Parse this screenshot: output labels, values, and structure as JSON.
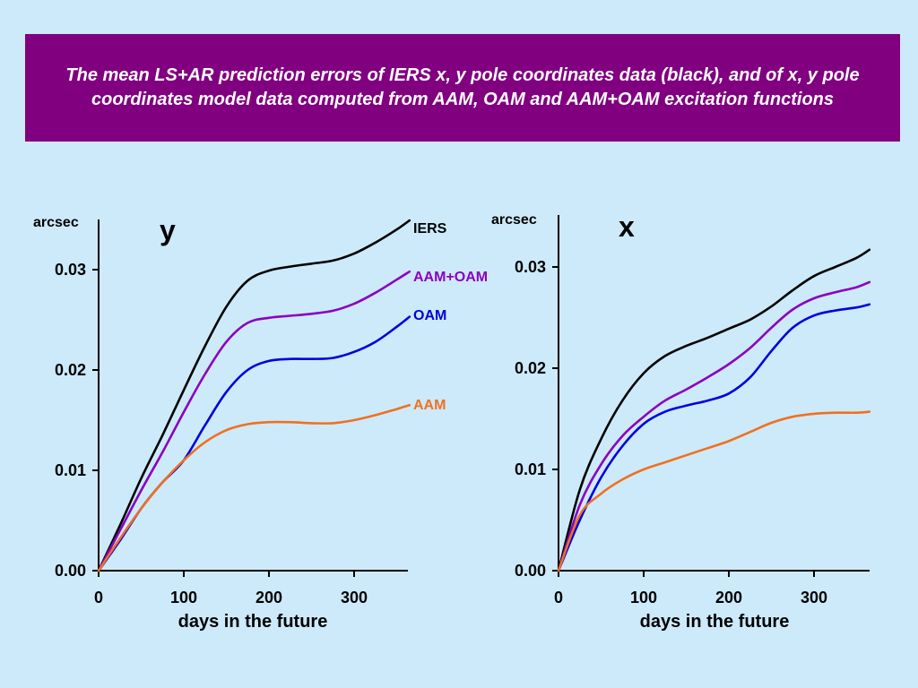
{
  "slide": {
    "title": "The mean LS+AR prediction errors of IERS x, y pole coordinates data (black), and of x, y pole coordinates model data computed from AAM, OAM and AAM+OAM excitation functions"
  },
  "chart_data": [
    {
      "type": "line",
      "panel_label": "y",
      "ylabel": "arcsec",
      "xlabel": "days in the future",
      "xlim": [
        0,
        365
      ],
      "ylim": [
        0,
        0.035
      ],
      "xticks": [
        "0",
        "100",
        "200",
        "300"
      ],
      "yticks": [
        "0.00",
        "0.01",
        "0.02",
        "0.03"
      ],
      "x": [
        0,
        25,
        50,
        75,
        100,
        125,
        150,
        175,
        200,
        225,
        250,
        275,
        300,
        325,
        350,
        365
      ],
      "series": [
        {
          "name": "IERS",
          "color": "#000000",
          "values": [
            0,
            0.0045,
            0.0092,
            0.0135,
            0.018,
            0.0224,
            0.0263,
            0.0289,
            0.0299,
            0.0303,
            0.0306,
            0.0309,
            0.0316,
            0.0327,
            0.034,
            0.0349
          ]
        },
        {
          "name": "AAM+OAM",
          "color": "#8b00c0",
          "values": [
            0,
            0.004,
            0.008,
            0.0118,
            0.0158,
            0.0196,
            0.0228,
            0.0247,
            0.0252,
            0.0254,
            0.0256,
            0.0259,
            0.0266,
            0.0277,
            0.029,
            0.0298
          ]
        },
        {
          "name": "OAM",
          "color": "#0000e0",
          "values": [
            0,
            0.003,
            0.0062,
            0.0088,
            0.011,
            0.0145,
            0.0178,
            0.02,
            0.0209,
            0.0211,
            0.0211,
            0.0212,
            0.0218,
            0.0228,
            0.0243,
            0.0253
          ]
        },
        {
          "name": "AAM",
          "color": "#f07020",
          "values": [
            0,
            0.0032,
            0.0062,
            0.0088,
            0.011,
            0.0128,
            0.014,
            0.0146,
            0.0148,
            0.0148,
            0.0147,
            0.0147,
            0.015,
            0.0155,
            0.0161,
            0.0165
          ]
        }
      ]
    },
    {
      "type": "line",
      "panel_label": "x",
      "ylabel": "arcsec",
      "xlabel": "days in the future",
      "xlim": [
        0,
        365
      ],
      "ylim": [
        0,
        0.035
      ],
      "xticks": [
        "0",
        "100",
        "200",
        "300"
      ],
      "yticks": [
        "0.00",
        "0.01",
        "0.02",
        "0.03"
      ],
      "x": [
        0,
        25,
        50,
        75,
        100,
        125,
        150,
        175,
        200,
        225,
        250,
        275,
        300,
        325,
        350,
        365
      ],
      "series": [
        {
          "name": "IERS",
          "color": "#000000",
          "values": [
            0,
            0.008,
            0.013,
            0.0168,
            0.0195,
            0.0212,
            0.0222,
            0.023,
            0.0239,
            0.0248,
            0.0261,
            0.0277,
            0.0291,
            0.03,
            0.0309,
            0.0317
          ]
        },
        {
          "name": "AAM+OAM",
          "color": "#8b00c0",
          "values": [
            0,
            0.0065,
            0.0105,
            0.0133,
            0.0152,
            0.0168,
            0.0179,
            0.0191,
            0.0204,
            0.022,
            0.024,
            0.0258,
            0.0269,
            0.0275,
            0.028,
            0.0285
          ]
        },
        {
          "name": "OAM",
          "color": "#0000e0",
          "values": [
            0,
            0.005,
            0.0092,
            0.0123,
            0.0145,
            0.0157,
            0.0163,
            0.0168,
            0.0175,
            0.0191,
            0.0217,
            0.024,
            0.0252,
            0.0257,
            0.026,
            0.0263
          ]
        },
        {
          "name": "AAM",
          "color": "#f07020",
          "values": [
            0,
            0.0055,
            0.0076,
            0.009,
            0.01,
            0.0107,
            0.0114,
            0.0121,
            0.0128,
            0.0137,
            0.0146,
            0.0152,
            0.0155,
            0.0156,
            0.0156,
            0.0157
          ]
        }
      ]
    }
  ]
}
